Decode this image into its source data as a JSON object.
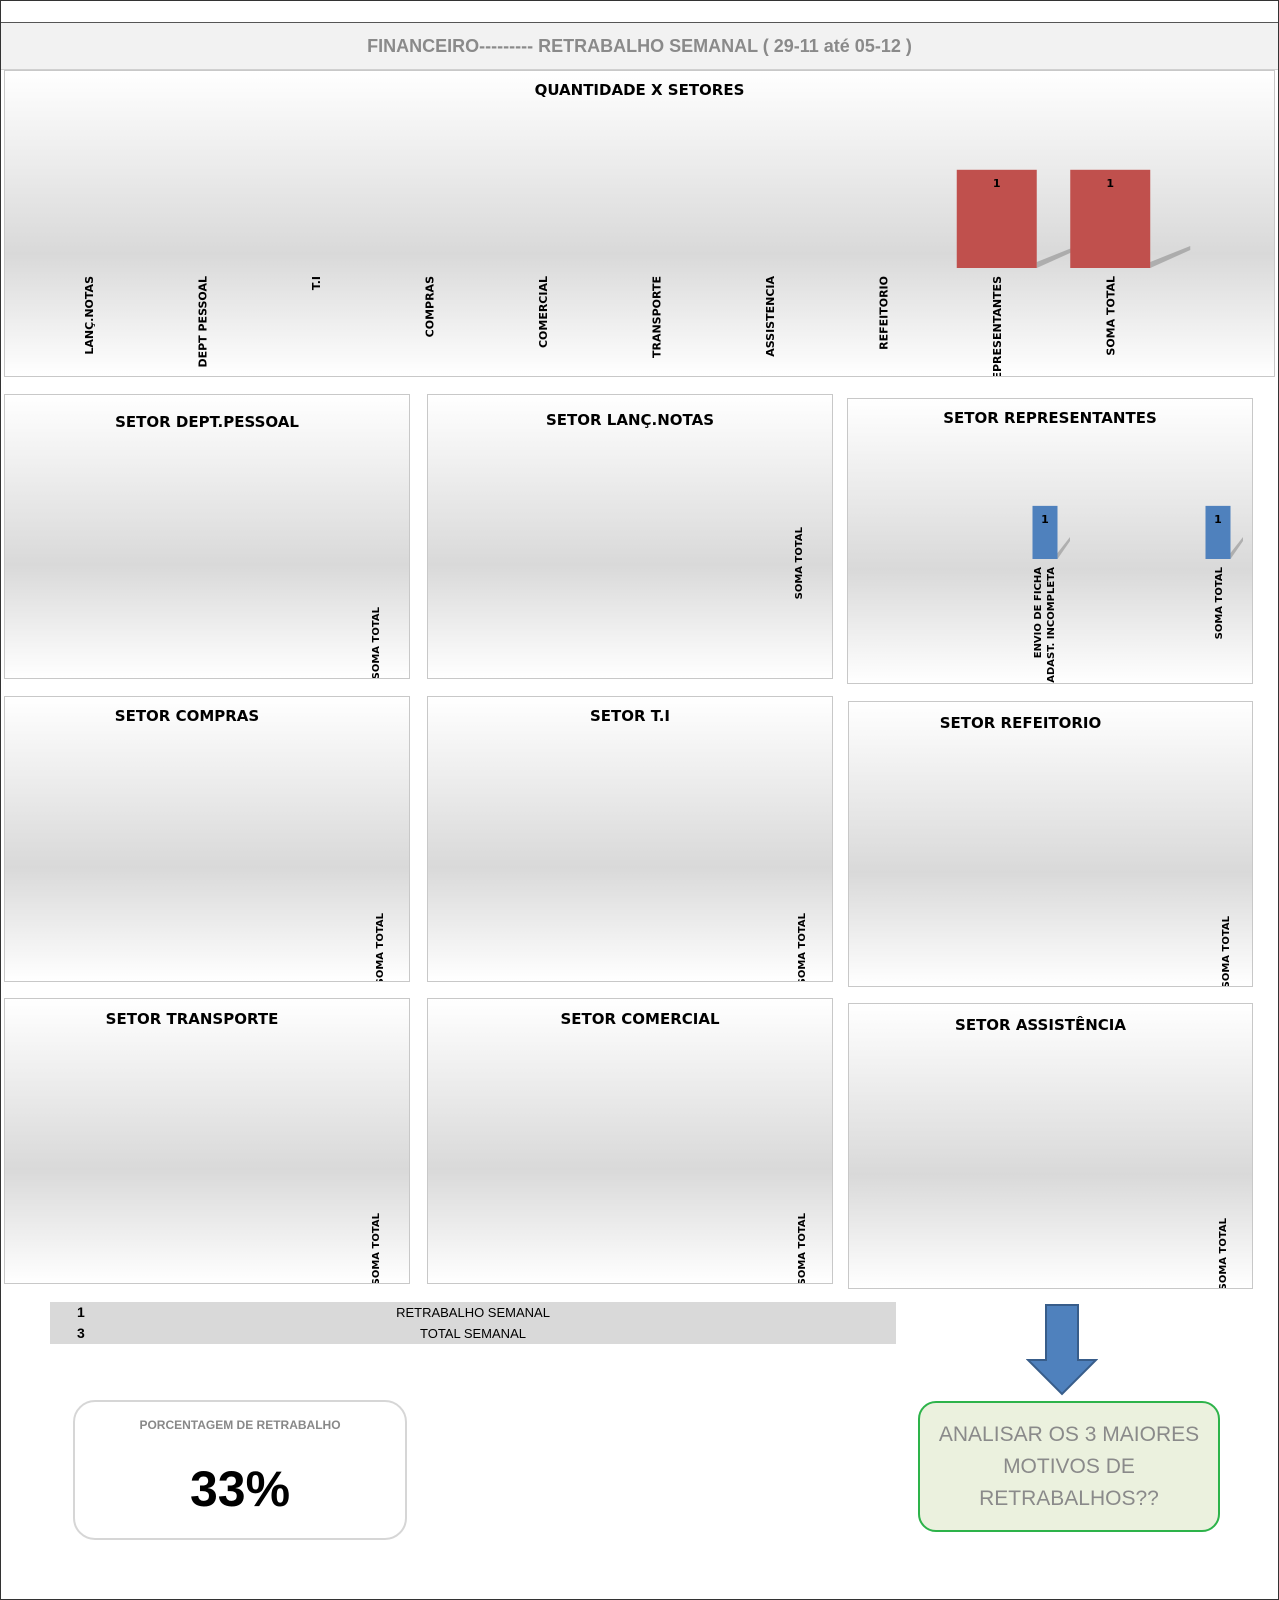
{
  "header": {
    "title": "FINANCEIRO---------   RETRABALHO SEMANAL ( 29-11 até 05-12 )"
  },
  "chart_data": [
    {
      "type": "bar",
      "title": "QUANTIDADE X SETORES",
      "categories": [
        "LANÇ.NOTAS",
        "DEPT PESSOAL",
        "T.I",
        "COMPRAS",
        "COMERCIAL",
        "TRANSPORTE",
        "ASSISTENCIA",
        "REFEITORIO",
        "REPRESENTANTES",
        "SOMA TOTAL"
      ],
      "values": [
        0,
        0,
        0,
        0,
        0,
        0,
        0,
        0,
        1,
        1
      ],
      "data_labels": [
        "",
        "",
        "",
        "",
        "",
        "",
        "",
        "",
        "1",
        "1"
      ],
      "ylim": [
        0,
        1.12
      ],
      "bar_color": "#c0504d",
      "grid": false
    },
    {
      "type": "bar",
      "title": "SETOR DEPT.PESSOAL",
      "categories": [
        "SOMA TOTAL"
      ],
      "values": [
        0
      ],
      "data_labels": [
        ""
      ],
      "ylim": [
        0,
        1
      ],
      "bar_color": "#4f81bd",
      "grid": false
    },
    {
      "type": "bar",
      "title": "SETOR LANÇ.NOTAS",
      "categories": [
        "SOMA TOTAL"
      ],
      "values": [
        0
      ],
      "data_labels": [
        ""
      ],
      "ylim": [
        0,
        1
      ],
      "bar_color": "#4f81bd",
      "grid": false
    },
    {
      "type": "bar",
      "title": "SETOR REPRESENTANTES",
      "categories": [
        "ENVIO DE FICHA CADAST. INCOMPLETA",
        "SOMA TOTAL"
      ],
      "values": [
        1,
        1
      ],
      "data_labels": [
        "1",
        "1"
      ],
      "ylim": [
        0,
        1.6
      ],
      "bar_color": "#4f81bd",
      "grid": false
    },
    {
      "type": "bar",
      "title": "SETOR COMPRAS",
      "categories": [
        "SOMA TOTAL"
      ],
      "values": [
        0
      ],
      "data_labels": [
        ""
      ],
      "ylim": [
        0,
        1
      ],
      "bar_color": "#4f81bd",
      "grid": false
    },
    {
      "type": "bar",
      "title": "SETOR T.I",
      "categories": [
        "SOMA TOTAL"
      ],
      "values": [
        0
      ],
      "data_labels": [
        ""
      ],
      "ylim": [
        0,
        1
      ],
      "bar_color": "#4f81bd",
      "grid": false
    },
    {
      "type": "bar",
      "title": "SETOR REFEITORIO",
      "categories": [
        "SOMA TOTAL"
      ],
      "values": [
        0
      ],
      "data_labels": [
        ""
      ],
      "ylim": [
        0,
        1
      ],
      "bar_color": "#4f81bd",
      "grid": false
    },
    {
      "type": "bar",
      "title": "SETOR TRANSPORTE",
      "categories": [
        "SOMA TOTAL"
      ],
      "values": [
        0
      ],
      "data_labels": [
        ""
      ],
      "ylim": [
        0,
        1
      ],
      "bar_color": "#4f81bd",
      "grid": false
    },
    {
      "type": "bar",
      "title": "SETOR COMERCIAL",
      "categories": [
        "SOMA TOTAL"
      ],
      "values": [
        0
      ],
      "data_labels": [
        ""
      ],
      "ylim": [
        0,
        1
      ],
      "bar_color": "#4f81bd",
      "grid": false
    },
    {
      "type": "bar",
      "title": "SETOR ASSISTÊNCIA",
      "categories": [
        "SOMA TOTAL"
      ],
      "values": [
        0
      ],
      "data_labels": [
        ""
      ],
      "ylim": [
        0,
        1
      ],
      "bar_color": "#4f81bd",
      "grid": false
    }
  ],
  "summary": {
    "rows": [
      {
        "value": "1",
        "label": "RETRABALHO SEMANAL"
      },
      {
        "value": "3",
        "label": "TOTAL  SEMANAL"
      }
    ]
  },
  "percentage": {
    "label": "PORCENTAGEM DE RETRABALHO",
    "value": "33%"
  },
  "note": {
    "text": "ANALISAR OS 3 MAIORES MOTIVOS DE RETRABALHOS??"
  }
}
